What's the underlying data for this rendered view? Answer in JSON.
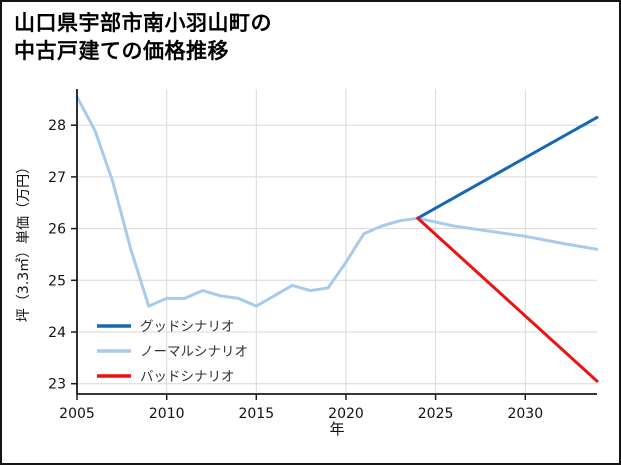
{
  "title": {
    "line1": "山口県宇部市南小羽山町の",
    "line2": "中古戸建ての価格推移"
  },
  "chart_data": {
    "type": "line",
    "title": "山口県宇部市南小羽山町の中古戸建ての価格推移",
    "xlabel": "年",
    "ylabel": "坪（3.3㎡）単価（万円）",
    "xlim": [
      2005,
      2034
    ],
    "ylim": [
      22.8,
      28.7
    ],
    "x_ticks": [
      2005,
      2010,
      2015,
      2020,
      2025,
      2030
    ],
    "y_ticks": [
      23,
      24,
      25,
      26,
      27,
      28
    ],
    "grid": true,
    "grid_color": "#d9d9d9",
    "axis_color": "#1a1a1a",
    "legend_position": "lower-left",
    "series": [
      {
        "name": "ノーマルシナリオ",
        "color": "#a8cbec",
        "stroke_width": 3,
        "points": [
          [
            2005,
            28.55
          ],
          [
            2006,
            27.9
          ],
          [
            2007,
            26.9
          ],
          [
            2008,
            25.6
          ],
          [
            2009,
            24.5
          ],
          [
            2010,
            24.65
          ],
          [
            2011,
            24.65
          ],
          [
            2012,
            24.8
          ],
          [
            2013,
            24.7
          ],
          [
            2014,
            24.65
          ],
          [
            2015,
            24.5
          ],
          [
            2016,
            24.7
          ],
          [
            2017,
            24.9
          ],
          [
            2018,
            24.8
          ],
          [
            2019,
            24.85
          ],
          [
            2020,
            25.35
          ],
          [
            2021,
            25.9
          ],
          [
            2022,
            26.05
          ],
          [
            2023,
            26.15
          ],
          [
            2024,
            26.2
          ],
          [
            2026,
            26.05
          ],
          [
            2028,
            25.95
          ],
          [
            2030,
            25.85
          ],
          [
            2032,
            25.72
          ],
          [
            2034,
            25.6
          ]
        ]
      },
      {
        "name": "グッドシナリオ",
        "color": "#1668b4",
        "stroke_width": 3,
        "points": [
          [
            2024,
            26.2
          ],
          [
            2034,
            28.15
          ]
        ]
      },
      {
        "name": "バッドシナリオ",
        "color": "#ee1111",
        "stroke_width": 3,
        "points": [
          [
            2024,
            26.2
          ],
          [
            2034,
            23.05
          ]
        ]
      }
    ],
    "legend": [
      {
        "label": "グッドシナリオ",
        "color": "#1668b4"
      },
      {
        "label": "ノーマルシナリオ",
        "color": "#a8cbec"
      },
      {
        "label": "バッドシナリオ",
        "color": "#ee1111"
      }
    ]
  }
}
